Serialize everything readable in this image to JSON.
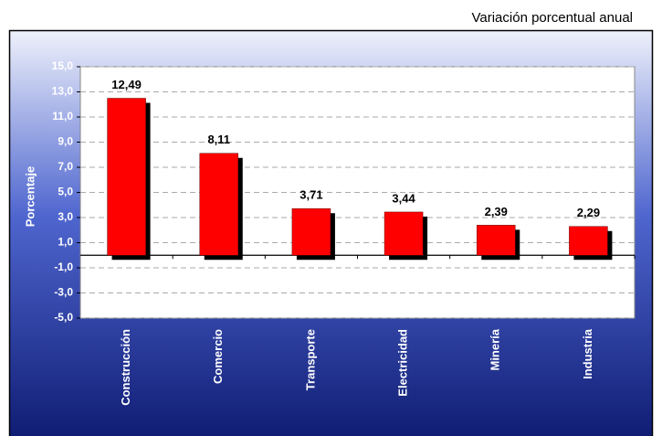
{
  "chart_data": {
    "type": "bar",
    "subtitle": "Variación porcentual anual",
    "y_label": "Porcentaje",
    "categories": [
      "Construcción",
      "Comercio",
      "Transporte",
      "Electricidad",
      "Minería",
      "Industria"
    ],
    "values": [
      12.49,
      8.11,
      3.71,
      3.44,
      2.39,
      2.29
    ],
    "value_labels": [
      "12,49",
      "8,11",
      "3,71",
      "3,44",
      "2,39",
      "2,29"
    ],
    "color": "#ff0000",
    "ylim": [
      -5,
      15
    ],
    "yticks": [
      {
        "value": -5,
        "label": "-5,0"
      },
      {
        "value": -3,
        "label": "-3,0"
      },
      {
        "value": -1,
        "label": "-1,0"
      },
      {
        "value": 1,
        "label": "1,0"
      },
      {
        "value": 3,
        "label": "3,0"
      },
      {
        "value": 5,
        "label": "5,0"
      },
      {
        "value": 7,
        "label": "7,0"
      },
      {
        "value": 9,
        "label": "9,0"
      },
      {
        "value": 11,
        "label": "11,0"
      },
      {
        "value": 13,
        "label": "13,0"
      },
      {
        "value": 15,
        "label": "15,0"
      }
    ],
    "grid": true
  }
}
